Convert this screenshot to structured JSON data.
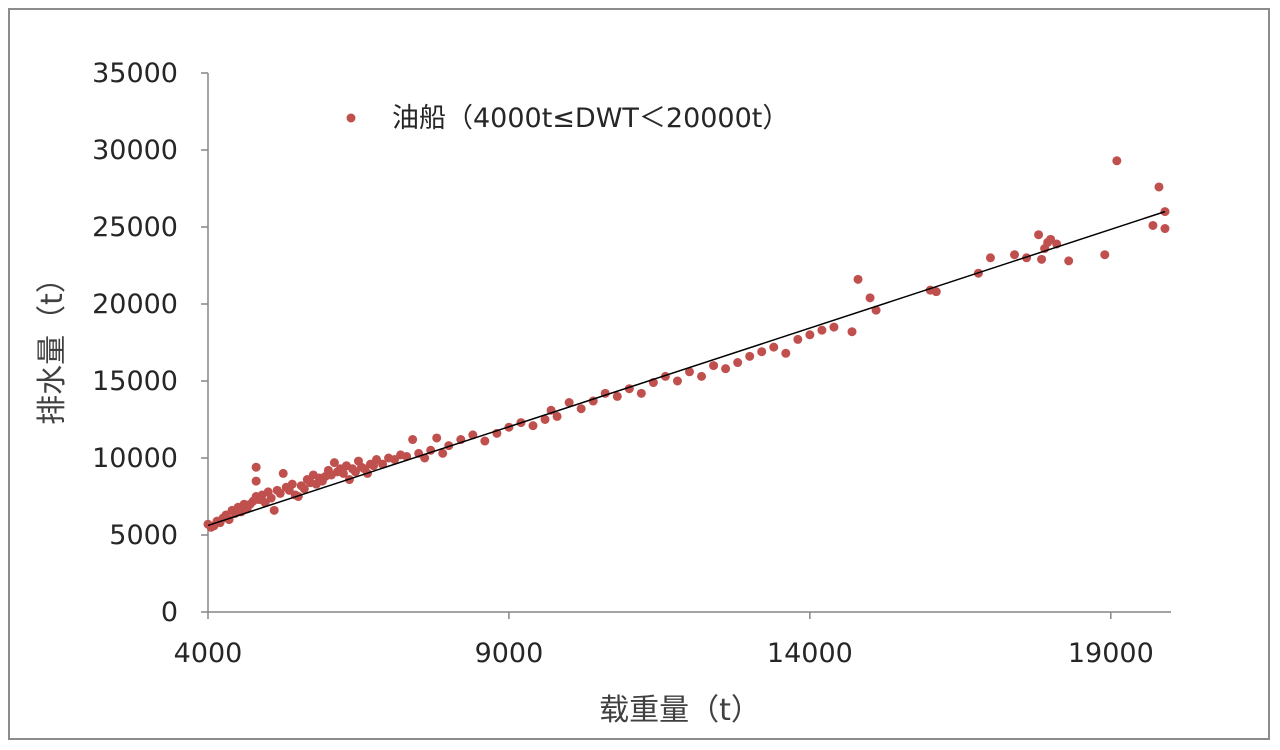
{
  "chart_data": {
    "type": "scatter",
    "title": "",
    "xlabel": "载重量（t）",
    "ylabel": "排水量（t）",
    "xlim": [
      4000,
      20000
    ],
    "ylim": [
      0,
      35000
    ],
    "xticks": [
      4000,
      9000,
      14000,
      19000
    ],
    "yticks": [
      0,
      5000,
      10000,
      15000,
      20000,
      25000,
      30000,
      35000
    ],
    "grid": false,
    "legend": "top-left",
    "colors": {
      "points": "#C0504D",
      "trendline": "#000000",
      "axis": "#868686"
    },
    "trendline": {
      "type": "linear",
      "x": [
        4000,
        19900
      ],
      "y": [
        5620,
        26000
      ]
    },
    "series": [
      {
        "name": "油船（4000t≤DWT＜20000t）",
        "x": [
          4000,
          4050,
          4100,
          4150,
          4200,
          4250,
          4300,
          4350,
          4400,
          4450,
          4500,
          4550,
          4600,
          4650,
          4700,
          4750,
          4800,
          4800,
          4800,
          4850,
          4900,
          4950,
          5000,
          5050,
          5100,
          5150,
          5200,
          5250,
          5300,
          5350,
          5400,
          5450,
          5500,
          5550,
          5600,
          5650,
          5700,
          5750,
          5800,
          5850,
          5900,
          5950,
          6000,
          6050,
          6100,
          6150,
          6200,
          6250,
          6300,
          6350,
          6400,
          6450,
          6500,
          6550,
          6600,
          6650,
          6700,
          6750,
          6800,
          6900,
          7000,
          7100,
          7200,
          7300,
          7400,
          7500,
          7600,
          7700,
          7800,
          7900,
          8000,
          8200,
          8400,
          8600,
          8800,
          9000,
          9200,
          9400,
          9600,
          9700,
          9800,
          10000,
          10200,
          10400,
          10600,
          10800,
          11000,
          11200,
          11400,
          11600,
          11800,
          12000,
          12200,
          12400,
          12600,
          12800,
          13000,
          13200,
          13400,
          13600,
          13800,
          14000,
          14200,
          14400,
          14700,
          14800,
          15000,
          15100,
          16000,
          16100,
          16800,
          17000,
          17400,
          17600,
          17800,
          17850,
          17900,
          17950,
          18000,
          18100,
          18300,
          18900,
          19100,
          19700,
          19800,
          19900,
          19900
        ],
        "y": [
          5700,
          5500,
          5600,
          5900,
          5800,
          6100,
          6300,
          6000,
          6600,
          6400,
          6800,
          6500,
          7000,
          6700,
          7000,
          7200,
          8500,
          9400,
          7500,
          7300,
          7600,
          7100,
          7800,
          7400,
          6600,
          7900,
          7700,
          9000,
          8100,
          7900,
          8300,
          7600,
          7500,
          8200,
          8000,
          8600,
          8400,
          8900,
          8300,
          8700,
          8500,
          8800,
          9200,
          8900,
          9700,
          9100,
          9300,
          9000,
          9500,
          8600,
          9300,
          9100,
          9800,
          9400,
          9300,
          9000,
          9600,
          9500,
          9900,
          9600,
          10000,
          9900,
          10200,
          10100,
          11200,
          10300,
          10000,
          10500,
          11300,
          10300,
          10800,
          11200,
          11500,
          11100,
          11600,
          12000,
          12300,
          12100,
          12500,
          13100,
          12700,
          13600,
          13200,
          13700,
          14200,
          14000,
          14500,
          14200,
          14900,
          15300,
          15000,
          15600,
          15300,
          16000,
          15800,
          16200,
          16600,
          16900,
          17200,
          16800,
          17700,
          18000,
          18300,
          18500,
          18200,
          21600,
          20400,
          19600,
          20900,
          20800,
          22000,
          23000,
          23200,
          23000,
          24500,
          22900,
          23600,
          24000,
          24200,
          23900,
          22800,
          23200,
          29300,
          25100,
          27600,
          26000,
          24900
        ]
      }
    ]
  }
}
